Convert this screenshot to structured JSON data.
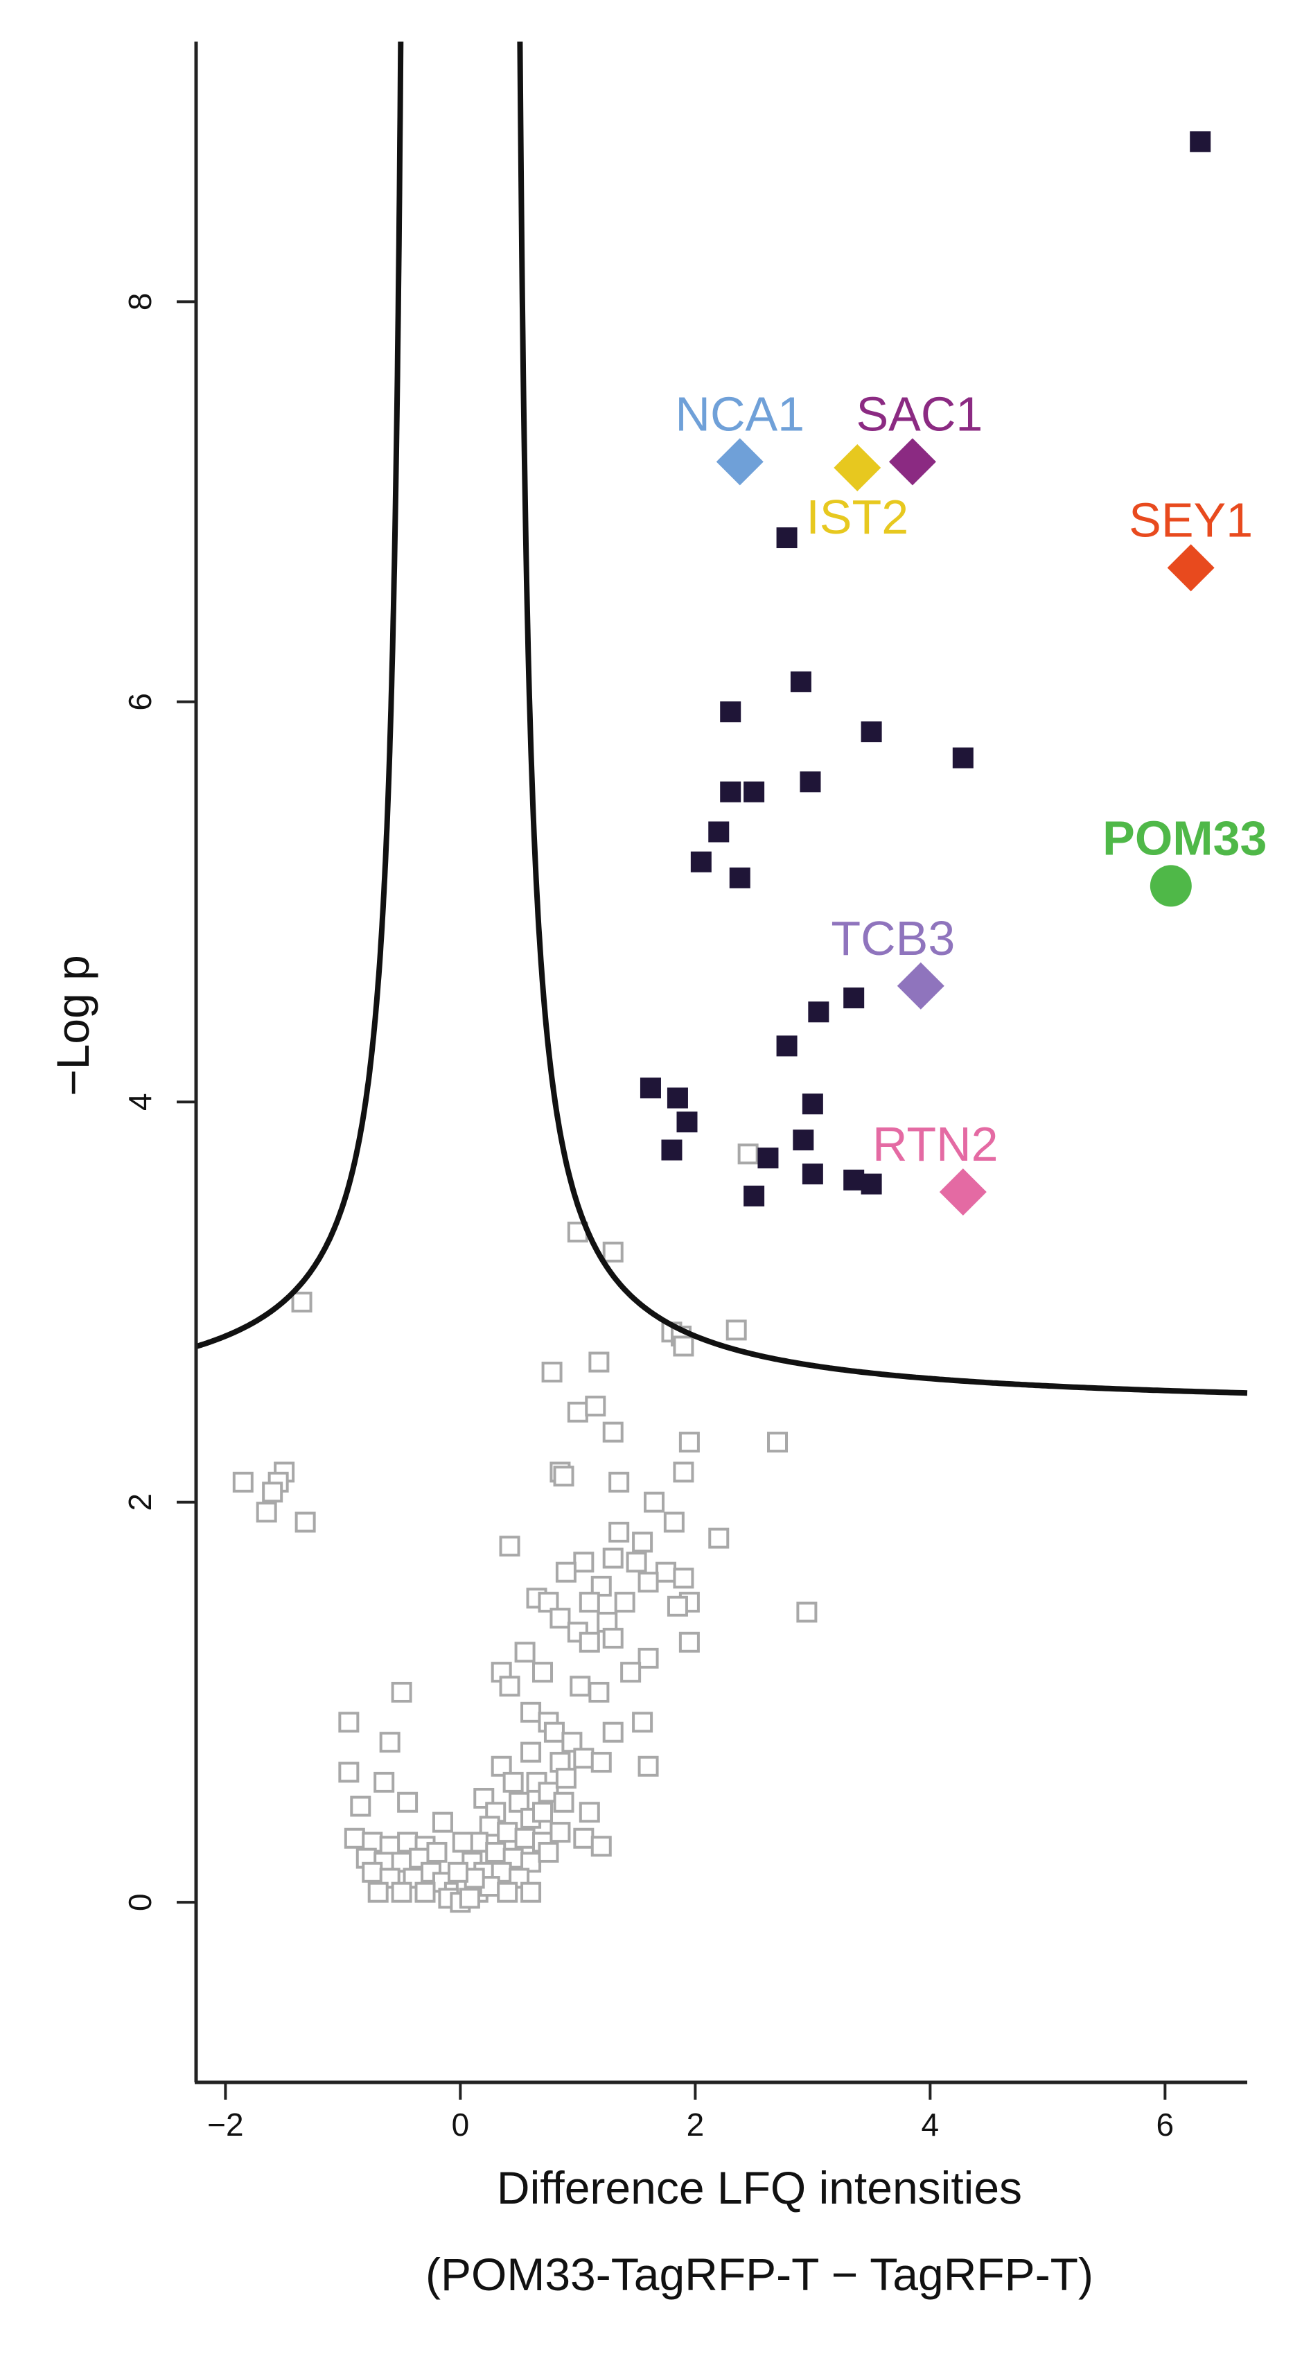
{
  "chart_data": {
    "type": "scatter",
    "title": "",
    "xlabel": "Difference LFQ intensities",
    "xlabel2": "(POM33-TagRFP-T − TagRFP-T)",
    "ylabel": "−Log p",
    "xlim": [
      -2.25,
      6.7
    ],
    "ylim": [
      -0.9,
      9.3
    ],
    "xticks": [
      -2,
      0,
      2,
      4,
      6
    ],
    "yticks": [
      0,
      2,
      4,
      6,
      8
    ],
    "significance_curve": {
      "s0": 0.42,
      "c": 0.6,
      "baseline": 2.45
    },
    "colors": {
      "significant": "#1f1537",
      "nonsignificant": "#a8a8a8",
      "curve": "#111111"
    },
    "significant_points": [
      [
        6.3,
        8.8
      ],
      [
        2.78,
        6.82
      ],
      [
        2.9,
        6.1
      ],
      [
        2.3,
        5.95
      ],
      [
        3.5,
        5.85
      ],
      [
        4.28,
        5.72
      ],
      [
        2.98,
        5.6
      ],
      [
        2.3,
        5.55
      ],
      [
        2.5,
        5.55
      ],
      [
        2.2,
        5.35
      ],
      [
        2.05,
        5.2
      ],
      [
        2.38,
        5.12
      ],
      [
        3.35,
        4.52
      ],
      [
        3.05,
        4.45
      ],
      [
        2.78,
        4.28
      ],
      [
        1.62,
        4.07
      ],
      [
        1.85,
        4.02
      ],
      [
        3.0,
        3.99
      ],
      [
        1.93,
        3.9
      ],
      [
        2.92,
        3.81
      ],
      [
        1.8,
        3.76
      ],
      [
        2.62,
        3.72
      ],
      [
        3.0,
        3.64
      ],
      [
        3.35,
        3.61
      ],
      [
        3.5,
        3.59
      ],
      [
        2.5,
        3.53
      ]
    ],
    "nonsignificant_points": [
      [
        2.45,
        3.74
      ],
      [
        1.0,
        3.35
      ],
      [
        1.3,
        3.25
      ],
      [
        -1.35,
        3.0
      ],
      [
        1.8,
        2.85
      ],
      [
        1.88,
        2.83
      ],
      [
        2.35,
        2.86
      ],
      [
        1.9,
        2.78
      ],
      [
        1.18,
        2.7
      ],
      [
        0.78,
        2.65
      ],
      [
        1.0,
        2.45
      ],
      [
        1.15,
        2.48
      ],
      [
        1.3,
        2.35
      ],
      [
        1.95,
        2.3
      ],
      [
        2.7,
        2.3
      ],
      [
        0.85,
        2.15
      ],
      [
        0.88,
        2.13
      ],
      [
        1.35,
        2.1
      ],
      [
        1.9,
        2.15
      ],
      [
        -1.5,
        2.15
      ],
      [
        -1.55,
        2.1
      ],
      [
        -1.6,
        2.05
      ],
      [
        -1.85,
        2.1
      ],
      [
        -1.65,
        1.95
      ],
      [
        -1.32,
        1.9
      ],
      [
        1.65,
        2.0
      ],
      [
        1.82,
        1.9
      ],
      [
        1.35,
        1.85
      ],
      [
        1.55,
        1.8
      ],
      [
        2.2,
        1.82
      ],
      [
        0.42,
        1.78
      ],
      [
        1.3,
        1.72
      ],
      [
        1.05,
        1.7
      ],
      [
        1.5,
        1.7
      ],
      [
        0.9,
        1.65
      ],
      [
        1.75,
        1.65
      ],
      [
        1.9,
        1.62
      ],
      [
        1.6,
        1.6
      ],
      [
        1.2,
        1.58
      ],
      [
        0.65,
        1.52
      ],
      [
        0.75,
        1.5
      ],
      [
        1.1,
        1.5
      ],
      [
        1.4,
        1.5
      ],
      [
        1.95,
        1.5
      ],
      [
        1.85,
        1.48
      ],
      [
        2.95,
        1.45
      ],
      [
        0.85,
        1.42
      ],
      [
        1.25,
        1.4
      ],
      [
        1.0,
        1.35
      ],
      [
        1.1,
        1.3
      ],
      [
        1.3,
        1.32
      ],
      [
        0.55,
        1.25
      ],
      [
        1.6,
        1.22
      ],
      [
        0.7,
        1.15
      ],
      [
        1.45,
        1.15
      ],
      [
        1.95,
        1.3
      ],
      [
        1.02,
        1.08
      ],
      [
        1.18,
        1.05
      ],
      [
        0.35,
        1.15
      ],
      [
        0.42,
        1.08
      ],
      [
        -0.5,
        1.05
      ],
      [
        0.6,
        0.95
      ],
      [
        0.75,
        0.9
      ],
      [
        -0.95,
        0.9
      ],
      [
        0.8,
        0.85
      ],
      [
        0.95,
        0.8
      ],
      [
        1.3,
        0.85
      ],
      [
        1.55,
        0.9
      ],
      [
        0.6,
        0.75
      ],
      [
        0.85,
        0.7
      ],
      [
        1.05,
        0.72
      ],
      [
        1.2,
        0.7
      ],
      [
        1.6,
        0.68
      ],
      [
        -0.6,
        0.8
      ],
      [
        0.35,
        0.68
      ],
      [
        0.45,
        0.6
      ],
      [
        0.65,
        0.6
      ],
      [
        0.75,
        0.55
      ],
      [
        0.9,
        0.62
      ],
      [
        -0.95,
        0.65
      ],
      [
        -0.65,
        0.6
      ],
      [
        0.2,
        0.52
      ],
      [
        0.3,
        0.45
      ],
      [
        0.5,
        0.5
      ],
      [
        0.6,
        0.42
      ],
      [
        0.7,
        0.45
      ],
      [
        0.88,
        0.5
      ],
      [
        1.1,
        0.45
      ],
      [
        -0.85,
        0.48
      ],
      [
        -0.45,
        0.5
      ],
      [
        0.25,
        0.38
      ],
      [
        0.4,
        0.35
      ],
      [
        0.55,
        0.32
      ],
      [
        0.7,
        0.3
      ],
      [
        0.85,
        0.35
      ],
      [
        1.05,
        0.32
      ],
      [
        1.2,
        0.28
      ],
      [
        -0.9,
        0.32
      ],
      [
        -0.75,
        0.3
      ],
      [
        -0.6,
        0.28
      ],
      [
        -0.45,
        0.3
      ],
      [
        -0.3,
        0.28
      ],
      [
        0.15,
        0.3
      ],
      [
        0.3,
        0.25
      ],
      [
        0.45,
        0.22
      ],
      [
        0.6,
        0.2
      ],
      [
        0.75,
        0.25
      ],
      [
        -0.8,
        0.22
      ],
      [
        -0.65,
        0.2
      ],
      [
        -0.5,
        0.2
      ],
      [
        -0.35,
        0.22
      ],
      [
        -0.2,
        0.25
      ],
      [
        0.1,
        0.2
      ],
      [
        0.2,
        0.15
      ],
      [
        0.35,
        0.15
      ],
      [
        0.5,
        0.12
      ],
      [
        -0.75,
        0.15
      ],
      [
        -0.6,
        0.12
      ],
      [
        -0.4,
        0.12
      ],
      [
        -0.25,
        0.15
      ],
      [
        -0.15,
        0.1
      ],
      [
        -0.05,
        0.05
      ],
      [
        0.05,
        0.08
      ],
      [
        0.15,
        0.05
      ],
      [
        0.25,
        0.08
      ],
      [
        -0.1,
        0.02
      ],
      [
        0.0,
        0.0
      ],
      [
        0.08,
        0.02
      ],
      [
        0.12,
        0.12
      ],
      [
        -0.02,
        0.15
      ],
      [
        -0.5,
        0.05
      ],
      [
        -0.3,
        0.05
      ],
      [
        0.4,
        0.05
      ],
      [
        0.6,
        0.05
      ],
      [
        -0.7,
        0.05
      ],
      [
        0.02,
        0.3
      ],
      [
        -0.15,
        0.4
      ]
    ],
    "highlighted_proteins": [
      {
        "label": "NCA1",
        "x": 2.38,
        "y": 7.2,
        "marker": "diamond",
        "color": "#6fa0d8"
      },
      {
        "label": "SAC1",
        "x": 3.85,
        "y": 7.2,
        "marker": "diamond",
        "color": "#8b2a82"
      },
      {
        "label": "IST2",
        "x": 3.38,
        "y": 7.17,
        "marker": "diamond",
        "color": "#e7c81f"
      },
      {
        "label": "SEY1",
        "x": 6.22,
        "y": 6.67,
        "marker": "diamond",
        "color": "#e84a1e"
      },
      {
        "label": "POM33",
        "x": 6.05,
        "y": 5.08,
        "marker": "circle",
        "color": "#4fb848"
      },
      {
        "label": "TCB3",
        "x": 3.92,
        "y": 4.58,
        "marker": "diamond",
        "color": "#8f74bd"
      },
      {
        "label": "RTN2",
        "x": 4.28,
        "y": 3.55,
        "marker": "diamond",
        "color": "#e46aa3"
      }
    ]
  }
}
